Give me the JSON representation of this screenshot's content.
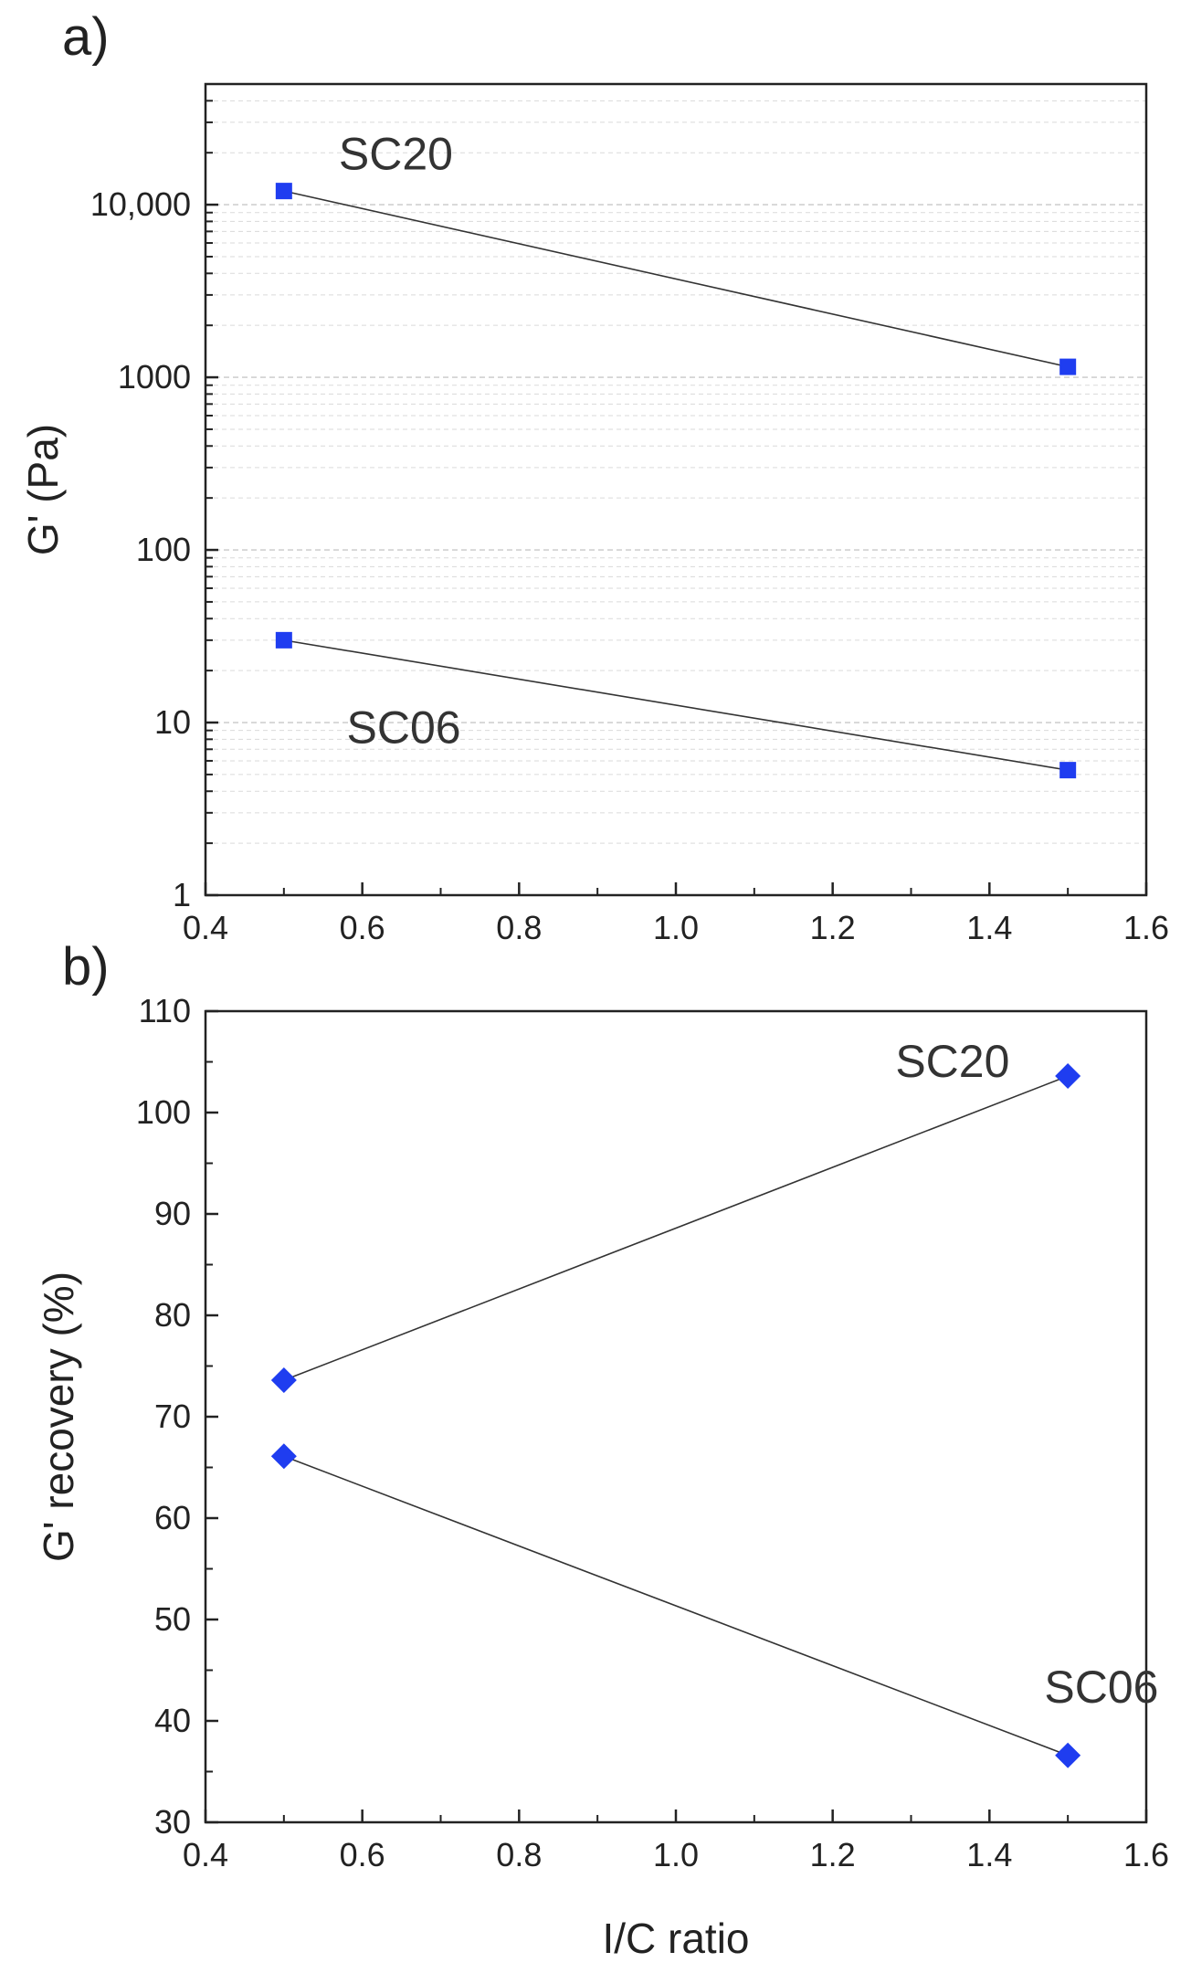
{
  "chart_data": [
    {
      "panel": "a)",
      "type": "scatter",
      "xlabel": "",
      "ylabel": "G' (Pa)",
      "xlim": [
        0.4,
        1.6
      ],
      "ylim": [
        1,
        50000
      ],
      "yscale": "log",
      "grid": true,
      "x_ticks": [
        "0.4",
        "0.6",
        "0.8",
        "1.0",
        "1.2",
        "1.4",
        "1.6"
      ],
      "x_tick_values": [
        0.4,
        0.6,
        0.8,
        1.0,
        1.2,
        1.4,
        1.6
      ],
      "y_ticks": [
        "1",
        "10",
        "100",
        "1000",
        "10,000"
      ],
      "y_tick_values": [
        1,
        10,
        100,
        1000,
        10000
      ],
      "marker": "square",
      "series_color": "#1f3df0",
      "series": [
        {
          "name": "SC20",
          "x": [
            0.5,
            1.5
          ],
          "values": [
            12000,
            1150
          ],
          "label_anchor": [
            0.57,
            16000
          ]
        },
        {
          "name": "SC06",
          "x": [
            0.5,
            1.5
          ],
          "values": [
            30,
            5.3
          ],
          "label_anchor": [
            0.58,
            7.6
          ]
        }
      ]
    },
    {
      "panel": "b)",
      "type": "scatter",
      "xlabel": "I/C ratio",
      "ylabel": "G' recovery (%)",
      "xlim": [
        0.4,
        1.6
      ],
      "ylim": [
        30,
        110
      ],
      "yscale": "linear",
      "grid": false,
      "x_ticks": [
        "0.4",
        "0.6",
        "0.8",
        "1.0",
        "1.2",
        "1.4",
        "1.6"
      ],
      "x_tick_values": [
        0.4,
        0.6,
        0.8,
        1.0,
        1.2,
        1.4,
        1.6
      ],
      "y_ticks": [
        "30",
        "40",
        "50",
        "60",
        "70",
        "80",
        "90",
        "100",
        "110"
      ],
      "y_tick_values": [
        30,
        40,
        50,
        60,
        70,
        80,
        90,
        100,
        110
      ],
      "marker": "diamond",
      "series_color": "#1f3df0",
      "series": [
        {
          "name": "SC20",
          "x": [
            0.5,
            1.5
          ],
          "values": [
            73.6,
            103.6
          ],
          "label_anchor": [
            1.28,
            103.5
          ]
        },
        {
          "name": "SC06",
          "x": [
            0.5,
            1.5
          ],
          "values": [
            66.1,
            36.6
          ],
          "label_anchor": [
            1.47,
            41.8
          ]
        }
      ]
    }
  ]
}
